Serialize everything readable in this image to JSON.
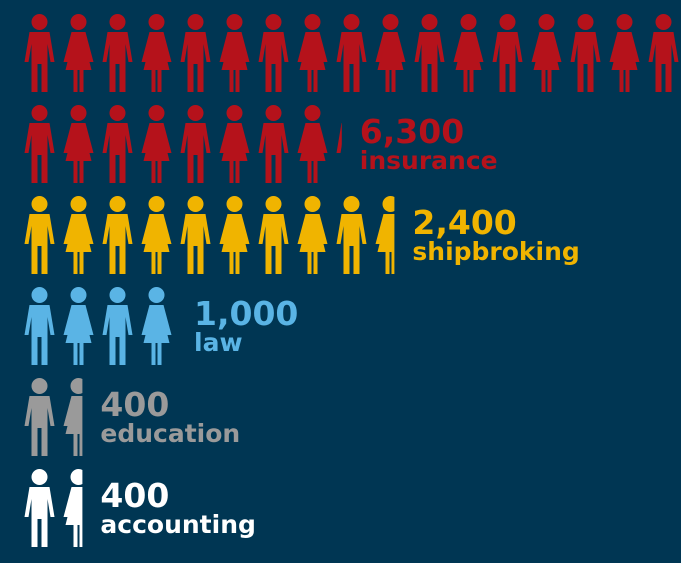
{
  "chart_data": {
    "type": "pictograph",
    "categories": [
      "insurance",
      "shipbroking",
      "law",
      "education",
      "accounting"
    ],
    "values": [
      6300,
      2400,
      1000,
      400,
      400
    ],
    "value_labels": [
      "6,300",
      "2,400",
      "1,000",
      "400",
      "400"
    ],
    "colors": [
      "#b5121b",
      "#f0b400",
      "#5ab4e5",
      "#9a9a9a",
      "#ffffff"
    ]
  }
}
